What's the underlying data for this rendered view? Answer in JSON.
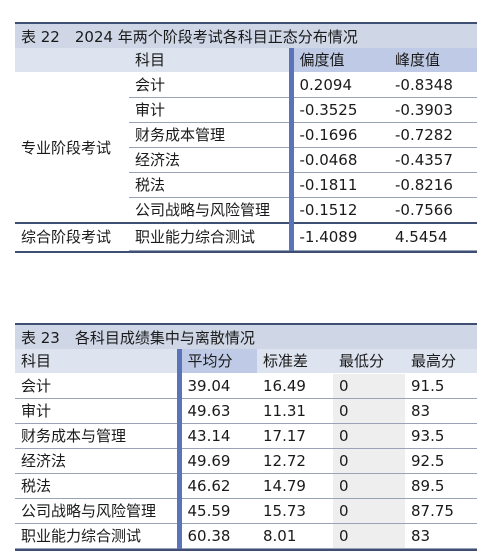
{
  "table1": {
    "caption": "表 22　2024 年两个阶段考试各科目正态分布情况",
    "headers": [
      "科目",
      "偏度值",
      "峰度值"
    ],
    "groups": [
      {
        "name": "专业阶段考试",
        "rows": [
          {
            "subject": "会计",
            "skew": "0.2094",
            "kurt": "-0.8348"
          },
          {
            "subject": "审计",
            "skew": "-0.3525",
            "kurt": "-0.3903"
          },
          {
            "subject": "财务成本管理",
            "skew": "-0.1696",
            "kurt": "-0.7282"
          },
          {
            "subject": "经济法",
            "skew": "-0.0468",
            "kurt": "-0.4357"
          },
          {
            "subject": "税法",
            "skew": "-0.1811",
            "kurt": "-0.8216"
          },
          {
            "subject": "公司战略与风险管理",
            "skew": "-0.1512",
            "kurt": "-0.7566"
          }
        ]
      },
      {
        "name": "综合阶段考试",
        "rows": [
          {
            "subject": "职业能力综合测试",
            "skew": "-1.4089",
            "kurt": "4.5454"
          }
        ]
      }
    ]
  },
  "table2": {
    "caption": "表 23　各科目成绩集中与离散情况",
    "headers": [
      "科目",
      "平均分",
      "标准差",
      "最低分",
      "最高分"
    ],
    "rows": [
      {
        "subject": "会计",
        "mean": "39.04",
        "sd": "16.49",
        "min": "0",
        "max": "91.5"
      },
      {
        "subject": "审计",
        "mean": "49.63",
        "sd": "11.31",
        "min": "0",
        "max": "83"
      },
      {
        "subject": "财务成本与管理",
        "mean": "43.14",
        "sd": "17.17",
        "min": "0",
        "max": "93.5"
      },
      {
        "subject": "经济法",
        "mean": "49.69",
        "sd": "12.72",
        "min": "0",
        "max": "92.5"
      },
      {
        "subject": "税法",
        "mean": "46.62",
        "sd": "14.79",
        "min": "0",
        "max": "89.5"
      },
      {
        "subject": "公司战略与风险管理",
        "mean": "45.59",
        "sd": "15.73",
        "min": "0",
        "max": "87.75"
      },
      {
        "subject": "职业能力综合测试",
        "mean": "60.38",
        "sd": "8.01",
        "min": "0",
        "max": "83"
      }
    ]
  }
}
